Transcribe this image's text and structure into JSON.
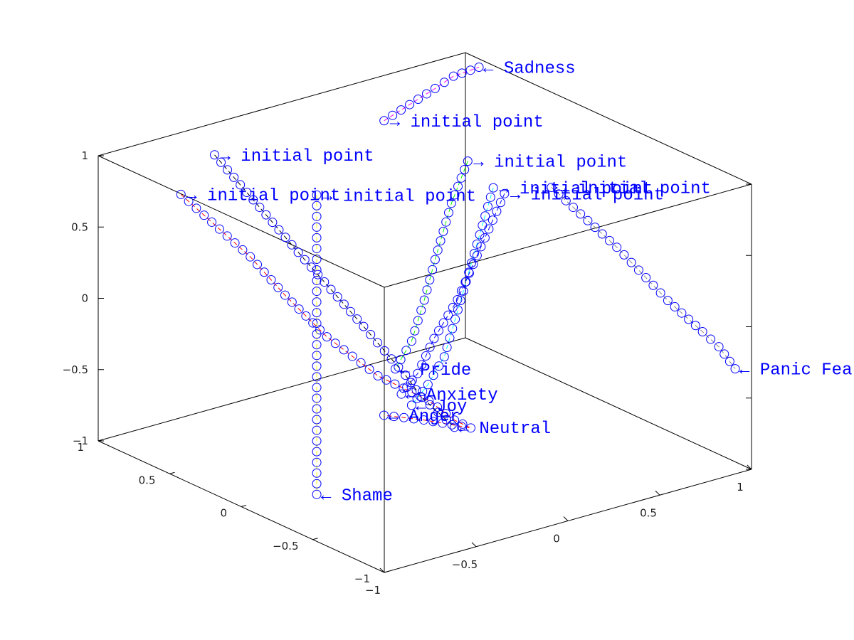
{
  "chart_data": {
    "type": "scatter",
    "dimensions": 3,
    "title": "",
    "xlabel": "",
    "ylabel": "",
    "zlabel": "",
    "xlim": [
      -1,
      1
    ],
    "ylim": [
      -1,
      1
    ],
    "zlim": [
      -1,
      1
    ],
    "x_ticks": [
      -1,
      -0.5,
      0,
      0.5,
      1
    ],
    "y_ticks": [
      -1,
      -0.5,
      0,
      0.5,
      1
    ],
    "z_ticks": [
      -1,
      -0.5,
      0,
      0.5,
      1
    ],
    "x_tick_labels": [
      "−1",
      "−0.5",
      "0",
      "0.5",
      "1"
    ],
    "y_tick_labels": [
      "−1",
      "−0.5",
      "0",
      "0.5",
      "1"
    ],
    "z_tick_labels": [
      "−1",
      "−0.5",
      "0",
      "0.5",
      "1"
    ],
    "grid": false,
    "legend": "none",
    "marker": "open circle",
    "marker_color": "#0000ff",
    "label_color": "#0000ff",
    "series": [
      {
        "name": "Anger",
        "color": "#ff0000",
        "points": [
          [
            -0.9,
            0.55,
            0.9
          ],
          [
            -0.6,
            0.45,
            0.4
          ],
          [
            -0.45,
            0.4,
            0.1
          ],
          [
            -0.3,
            0.3,
            -0.2
          ],
          [
            -0.1,
            0.2,
            -0.5
          ],
          [
            0.1,
            0.1,
            -0.7
          ],
          [
            0.2,
            0.05,
            -0.85
          ],
          [
            0.25,
            0.0,
            -0.9
          ],
          [
            0.15,
            0.2,
            -0.9
          ],
          [
            0.05,
            0.35,
            -0.9
          ]
        ]
      },
      {
        "name": "Neutral",
        "color": "#000000",
        "points": [
          [
            -0.6,
            0.7,
            1.0
          ],
          [
            -0.3,
            0.5,
            0.3
          ],
          [
            -0.1,
            0.3,
            -0.2
          ],
          [
            0.05,
            0.2,
            -0.55
          ],
          [
            0.1,
            0.15,
            -0.7
          ],
          [
            0.15,
            0.1,
            -0.8
          ],
          [
            0.2,
            0.05,
            -0.9
          ]
        ]
      },
      {
        "name": "Shame",
        "color": "#ffff00",
        "points": [
          [
            -0.55,
            0.05,
            1.0
          ],
          [
            -0.55,
            0.05,
            0.7
          ],
          [
            -0.55,
            0.05,
            0.4
          ],
          [
            -0.55,
            0.05,
            0.1
          ],
          [
            -0.55,
            0.05,
            -0.2
          ],
          [
            -0.55,
            0.05,
            -0.5
          ],
          [
            -0.55,
            0.05,
            -0.8
          ],
          [
            -0.55,
            0.05,
            -1.1
          ]
        ]
      },
      {
        "name": "Sadness",
        "color": "#ff00ff",
        "points": [
          [
            -0.3,
            -0.1,
            1.5
          ],
          [
            -0.2,
            -0.15,
            1.6
          ],
          [
            -0.1,
            -0.2,
            1.7
          ],
          [
            0.0,
            -0.2,
            1.75
          ],
          [
            0.1,
            -0.25,
            1.8
          ]
        ]
      },
      {
        "name": "Pride",
        "color": "#00ff00",
        "points": [
          [
            0.0,
            -0.3,
            1.2
          ],
          [
            -0.05,
            -0.25,
            0.9
          ],
          [
            -0.1,
            -0.2,
            0.5
          ],
          [
            -0.12,
            -0.15,
            0.2
          ],
          [
            -0.15,
            -0.1,
            -0.1
          ],
          [
            -0.2,
            -0.05,
            -0.3
          ]
        ]
      },
      {
        "name": "Joy",
        "color": "#00ffff",
        "points": [
          [
            0.1,
            -0.35,
            1.0
          ],
          [
            0.05,
            -0.3,
            0.6
          ],
          [
            0.0,
            -0.25,
            0.2
          ],
          [
            -0.05,
            -0.2,
            -0.2
          ],
          [
            -0.1,
            -0.15,
            -0.4
          ],
          [
            -0.15,
            -0.1,
            -0.55
          ]
        ]
      },
      {
        "name": "Anxiety",
        "color": "#0000ff",
        "points": [
          [
            0.2,
            -0.3,
            0.9
          ],
          [
            0.15,
            -0.2,
            0.5
          ],
          [
            0.1,
            -0.1,
            0.1
          ],
          [
            0.05,
            0.0,
            -0.2
          ],
          [
            0.0,
            0.05,
            -0.45
          ],
          [
            -0.05,
            0.1,
            -0.6
          ]
        ]
      },
      {
        "name": "Panic Fear",
        "color": "#888888",
        "points": [
          [
            0.3,
            -0.5,
            1.0
          ],
          [
            0.5,
            -0.7,
            0.6
          ],
          [
            0.7,
            -0.8,
            0.2
          ],
          [
            0.85,
            -0.85,
            -0.05
          ],
          [
            0.9,
            -0.9,
            -0.15
          ],
          [
            0.95,
            -0.95,
            -0.3
          ]
        ]
      }
    ],
    "labels": {
      "emotions": [
        "← Anger",
        "← Neutral",
        "← Shame",
        "← Sadness",
        "← Pride",
        "← Joy",
        "← Anxiety",
        "← Panic Fear"
      ],
      "initial": "→ initial point"
    }
  }
}
